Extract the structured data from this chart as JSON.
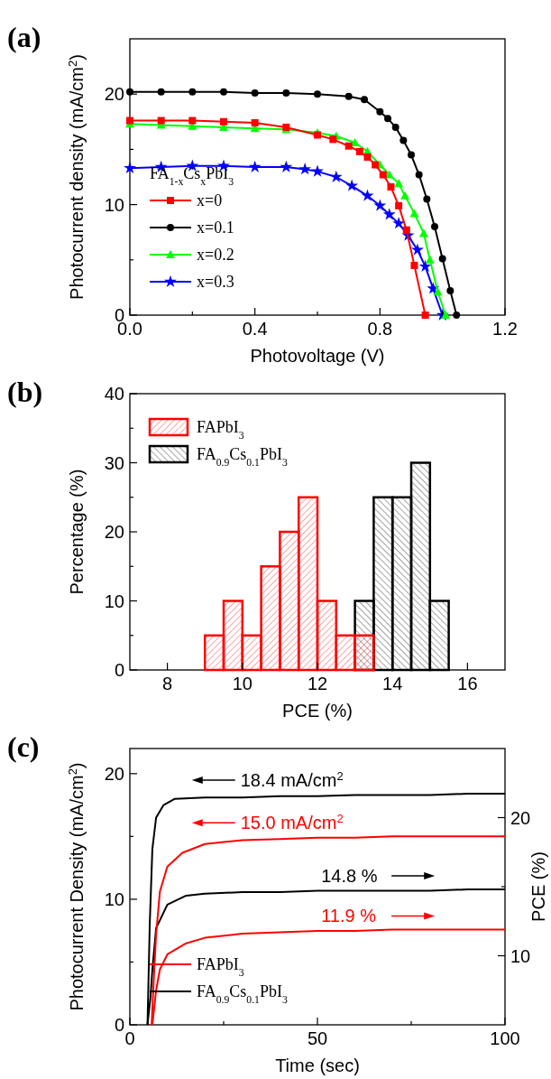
{
  "chart_data": [
    {
      "type": "line",
      "title": "(a)",
      "xlabel": "Photovoltage (V)",
      "ylabel": "Photocurrent density (mA/cm$^{2}$)",
      "legend_title": "FA$_{1-x}$Cs$_{x}$PbI$_{3}$",
      "legend": "bottom left",
      "xlim": [
        0,
        1.2
      ],
      "ylim": [
        0,
        25
      ],
      "xticks": [
        {
          "value": 0,
          "label": "0.0"
        },
        {
          "value": 0.2,
          "label": null
        },
        0.4,
        {
          "value": 0.6,
          "label": null
        },
        0.8,
        {
          "value": 1.0,
          "label": null
        },
        1.2
      ],
      "yticks": [
        0,
        {
          "value": 5,
          "label": null
        },
        10,
        {
          "value": 15,
          "label": null
        },
        20
      ],
      "series": [
        {
          "name": "x=0",
          "color": "#ff0000",
          "marker": "square",
          "x": [
            0,
            0.1,
            0.2,
            0.3,
            0.4,
            0.5,
            0.6,
            0.65,
            0.7,
            0.735,
            0.76,
            0.785,
            0.81,
            0.835,
            0.86,
            0.885,
            0.91,
            0.945
          ],
          "values": [
            17.6,
            17.6,
            17.6,
            17.5,
            17.4,
            17.0,
            16.3,
            15.9,
            15.3,
            14.8,
            14.3,
            13.6,
            12.7,
            11.6,
            9.9,
            7.7,
            4.5,
            0
          ]
        },
        {
          "name": "x=0.1",
          "color": "#000000",
          "marker": "circle",
          "x": [
            0,
            0.1,
            0.2,
            0.3,
            0.4,
            0.5,
            0.6,
            0.7,
            0.75,
            0.8,
            0.825,
            0.85,
            0.875,
            0.9,
            0.925,
            0.95,
            0.975,
            1.0,
            1.025,
            1.045
          ],
          "values": [
            20.2,
            20.2,
            20.2,
            20.2,
            20.1,
            20.1,
            20.0,
            19.8,
            19.5,
            18.4,
            17.8,
            17.0,
            15.8,
            14.5,
            12.7,
            10.5,
            8.0,
            5.1,
            2.2,
            0
          ]
        },
        {
          "name": "x=0.2",
          "color": "#00ff00",
          "marker": "triangle",
          "x": [
            0,
            0.1,
            0.2,
            0.3,
            0.4,
            0.5,
            0.6,
            0.66,
            0.72,
            0.76,
            0.8,
            0.83,
            0.86,
            0.88,
            0.91,
            0.94,
            0.96,
            0.985,
            1.01
          ],
          "values": [
            17.3,
            17.2,
            17.1,
            17.0,
            16.9,
            16.8,
            16.5,
            16.2,
            15.6,
            14.8,
            13.6,
            12.7,
            11.9,
            10.8,
            9.2,
            7.4,
            5.0,
            2.1,
            0
          ]
        },
        {
          "name": "x=0.3",
          "color": "#0000ff",
          "marker": "star",
          "x": [
            0,
            0.1,
            0.2,
            0.3,
            0.4,
            0.5,
            0.56,
            0.6,
            0.66,
            0.71,
            0.76,
            0.8,
            0.83,
            0.86,
            0.89,
            0.92,
            0.945,
            0.97,
            1.0
          ],
          "values": [
            13.3,
            13.4,
            13.5,
            13.5,
            13.4,
            13.4,
            13.2,
            13.0,
            12.5,
            11.7,
            10.8,
            9.9,
            9.1,
            8.3,
            7.2,
            5.9,
            4.4,
            2.4,
            0
          ]
        }
      ]
    },
    {
      "type": "histogram",
      "title": "(b)",
      "xlabel": "PCE (%)",
      "ylabel": "Percentage (%)",
      "legend": "top left",
      "xlim": [
        7,
        17
      ],
      "ylim": [
        0,
        40
      ],
      "xticks": [
        8,
        10,
        12,
        14,
        16
      ],
      "yticks": [
        0,
        {
          "value": 5,
          "label": null
        },
        10,
        {
          "value": 15,
          "label": null
        },
        20,
        {
          "value": 25,
          "label": null
        },
        30,
        {
          "value": 35,
          "label": null
        },
        40
      ],
      "series": [
        {
          "name": "FAPbI$_{3}$",
          "color": "#ff0000",
          "values": [
            5,
            10,
            5,
            15,
            20,
            25,
            10,
            5,
            5,
            null,
            null,
            null,
            null
          ]
        },
        {
          "name": "FA$_{0.9}$Cs$_{0.1}$PbI$_{3}$",
          "color": "#000000",
          "values": [
            null,
            null,
            null,
            null,
            null,
            null,
            null,
            null,
            10,
            25,
            25,
            30,
            10
          ]
        }
      ],
      "bins": [
        9,
        9.5,
        10,
        10.5,
        11,
        11.5,
        12,
        12.5,
        13,
        13.5,
        14,
        14.5,
        15,
        15.5
      ]
    },
    {
      "type": "line",
      "title": "(c)",
      "xlabel": "Time (sec)",
      "ylabel": "Photocurrent Density (mA/cm$^{2}$)",
      "y2label": "PCE (%)",
      "legend": "bottom left",
      "xlim": [
        0,
        100
      ],
      "ylim": [
        0,
        22
      ],
      "y2lim": [
        5,
        25
      ],
      "xticks": [
        0,
        {
          "value": 25,
          "label": null
        },
        50,
        {
          "value": 75,
          "label": null
        },
        100
      ],
      "yticks": [
        0,
        {
          "value": 5,
          "label": null
        },
        10,
        {
          "value": 15,
          "label": null
        },
        20
      ],
      "y2ticks": [
        10,
        {
          "value": 15,
          "label": null
        },
        20
      ],
      "series": [
        {
          "name": "FAPbI$_{3}$",
          "color": "#ff0000",
          "x": [
            5.8,
            6.5,
            7,
            8,
            10,
            14,
            20,
            30,
            40,
            50,
            60,
            70,
            80,
            90,
            100
          ],
          "values": [
            0,
            4.4,
            7.2,
            10.6,
            12.6,
            13.7,
            14.4,
            14.7,
            14.8,
            14.9,
            14.9,
            15.0,
            15.0,
            15.0,
            15.0
          ]
        },
        {
          "name": "FA$_{0.9}$Cs$_{0.1}$PbI$_{3}$",
          "color": "#000000",
          "x": [
            4.7,
            5.3,
            6,
            7,
            9,
            12,
            20,
            30,
            40,
            50,
            60,
            70,
            80,
            90,
            100
          ],
          "values": [
            0,
            8,
            14,
            16.5,
            17.5,
            18.0,
            18.1,
            18.1,
            18.2,
            18.2,
            18.3,
            18.3,
            18.3,
            18.4,
            18.4
          ]
        },
        {
          "color": "#ff0000",
          "axis": "y2",
          "x": [
            6,
            7,
            8,
            10,
            15,
            20,
            30,
            40,
            50,
            60,
            70,
            80,
            90,
            100
          ],
          "values": [
            5,
            7.5,
            9.0,
            10.1,
            10.9,
            11.3,
            11.6,
            11.7,
            11.8,
            11.8,
            11.9,
            11.9,
            11.9,
            11.9
          ]
        },
        {
          "color": "#000000",
          "axis": "y2",
          "x": [
            4.7,
            5.5,
            6,
            7,
            10,
            15,
            20,
            30,
            40,
            50,
            60,
            70,
            80,
            90,
            100
          ],
          "values": [
            5,
            7,
            9.0,
            12.0,
            13.7,
            14.35,
            14.5,
            14.6,
            14.6,
            14.7,
            14.7,
            14.7,
            14.7,
            14.8,
            14.8
          ]
        }
      ],
      "annotations": [
        "15.0 mA/cm$^{2}$",
        "18.4 mA/cm$^{2}$",
        "11.9 %",
        "14.8 %"
      ]
    }
  ]
}
